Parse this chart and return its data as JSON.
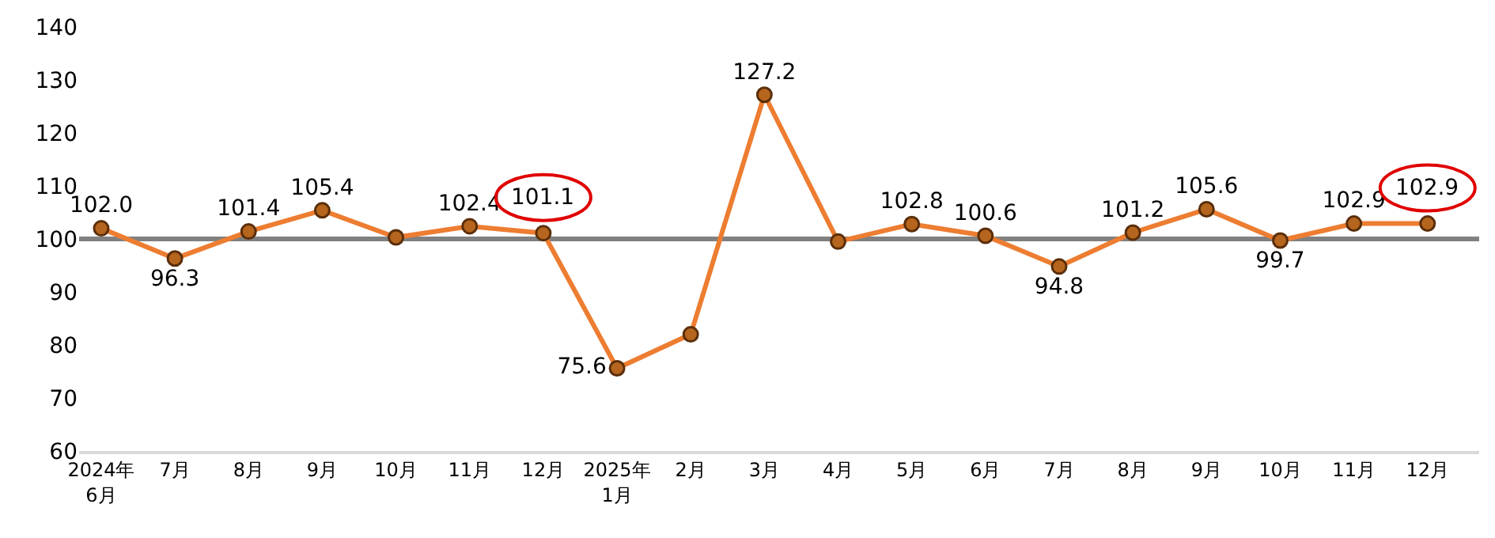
{
  "chart_data": {
    "type": "line",
    "categories": [
      "2024年\n6月",
      "7月",
      "8月",
      "9月",
      "10月",
      "11月",
      "12月",
      "2025年\n1月",
      "2月",
      "3月",
      "4月",
      "5月",
      "6月",
      "7月",
      "8月",
      "9月",
      "10月",
      "11月",
      "12月"
    ],
    "series": [
      {
        "color": "#ed7d31",
        "values": [
          102.0,
          96.3,
          101.4,
          105.4,
          100.3,
          102.4,
          101.1,
          75.6,
          82.0,
          127.2,
          99.5,
          102.8,
          100.6,
          94.8,
          101.2,
          105.6,
          99.7,
          102.9,
          102.9
        ],
        "value_labels": [
          "102.0",
          "96.3",
          "101.4",
          "105.4",
          null,
          "102.4",
          null,
          "75.6",
          null,
          "127.2",
          null,
          "102.8",
          "100.6",
          "94.8",
          "101.2",
          "105.6",
          "99.7",
          "102.9",
          null
        ]
      }
    ],
    "ylim": [
      60,
      140
    ],
    "yticks": [
      60,
      70,
      80,
      90,
      100,
      110,
      120,
      130,
      140
    ],
    "ref_lines": [
      {
        "axis": "y",
        "value": 100,
        "color": "#808080"
      }
    ],
    "annotations": [
      {
        "text": "101.1",
        "y": 101.1
      },
      {
        "text": "102.9",
        "y": 102.9
      }
    ],
    "marker": "circle",
    "line_style": "solid",
    "grid": false
  }
}
